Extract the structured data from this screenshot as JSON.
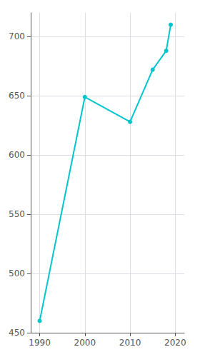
{
  "chart_data": {
    "type": "line",
    "x": [
      1990,
      2000,
      2010,
      2015,
      2018,
      2019
    ],
    "values": [
      460,
      649,
      628,
      672,
      688,
      710
    ],
    "color": "#00c5cd",
    "marker": "circle",
    "xlim": [
      1988,
      2022
    ],
    "xticks": [
      1990,
      2000,
      2010,
      2020
    ],
    "ylim": [
      450,
      720
    ],
    "yticks": [
      450,
      500,
      550,
      600,
      650,
      700
    ],
    "grid": true
  }
}
